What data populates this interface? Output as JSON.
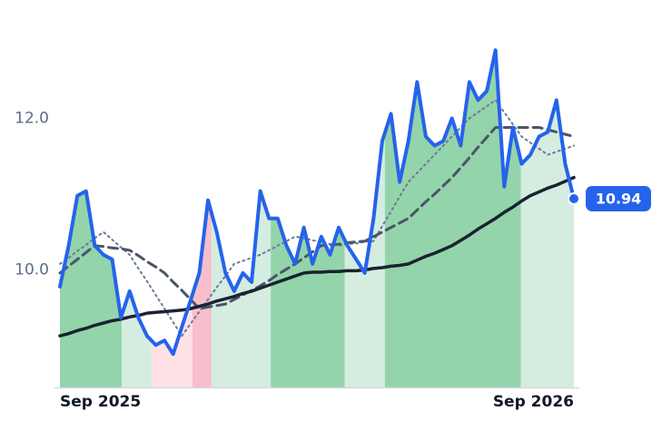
{
  "chart_data": {
    "type": "line",
    "categories": [
      "Sep 2025",
      null,
      null,
      null,
      null,
      null,
      null,
      null,
      null,
      null,
      null,
      null,
      null,
      null,
      null,
      null,
      null,
      null,
      null,
      null,
      null,
      null,
      null,
      null,
      null,
      null,
      null,
      null,
      null,
      null,
      null,
      null,
      null,
      null,
      null,
      null,
      null,
      null,
      null,
      null,
      null,
      null,
      null,
      null,
      null,
      null,
      null,
      null,
      null,
      null,
      null,
      null,
      null,
      null,
      null,
      null,
      null,
      null,
      null,
      "Sep 2026"
    ],
    "series": [
      {
        "color": "#2563eb",
        "style": "solid",
        "width": 4,
        "values": [
          9.78,
          10.32,
          10.98,
          11.04,
          10.32,
          10.2,
          10.14,
          9.37,
          9.72,
          9.37,
          9.13,
          9.01,
          9.07,
          8.89,
          9.25,
          9.6,
          9.96,
          10.92,
          10.5,
          9.96,
          9.72,
          9.96,
          9.84,
          11.04,
          10.68,
          10.68,
          10.32,
          10.08,
          10.56,
          10.08,
          10.44,
          10.2,
          10.56,
          10.32,
          10.14,
          9.96,
          10.68,
          11.7,
          12.06,
          11.16,
          11.7,
          12.48,
          11.76,
          11.64,
          11.7,
          12.0,
          11.64,
          12.48,
          12.24,
          12.36,
          12.9,
          11.1,
          11.88,
          11.4,
          11.52,
          11.76,
          11.82,
          12.24,
          11.4,
          10.94
        ]
      },
      {
        "color": "#6b7a99",
        "style": "dotted",
        "width": 2,
        "values": [
          10.08,
          10.16,
          10.25,
          10.33,
          10.42,
          10.5,
          10.4,
          10.3,
          10.2,
          10.02,
          9.85,
          9.67,
          9.49,
          9.31,
          9.13,
          9.29,
          9.45,
          9.61,
          9.77,
          9.92,
          10.08,
          10.12,
          10.16,
          10.2,
          10.26,
          10.32,
          10.38,
          10.44,
          10.42,
          10.39,
          10.37,
          10.34,
          10.32,
          10.34,
          10.35,
          10.37,
          10.38,
          10.58,
          10.77,
          10.97,
          11.16,
          11.28,
          11.4,
          11.52,
          11.64,
          11.76,
          11.88,
          12.0,
          12.08,
          12.16,
          12.24,
          12.08,
          11.92,
          11.76,
          11.68,
          11.6,
          11.52,
          11.56,
          11.6,
          11.64
        ]
      },
      {
        "color": "#4a5568",
        "style": "dashed",
        "width": 3,
        "values": [
          9.96,
          10.05,
          10.14,
          10.23,
          10.32,
          10.31,
          10.29,
          10.28,
          10.26,
          10.19,
          10.11,
          10.04,
          9.96,
          9.84,
          9.73,
          9.61,
          9.49,
          9.51,
          9.53,
          9.55,
          9.61,
          9.67,
          9.73,
          9.79,
          9.86,
          9.94,
          10.01,
          10.08,
          10.16,
          10.24,
          10.32,
          10.33,
          10.34,
          10.36,
          10.37,
          10.38,
          10.44,
          10.5,
          10.56,
          10.62,
          10.68,
          10.79,
          10.9,
          11.0,
          11.11,
          11.22,
          11.35,
          11.48,
          11.62,
          11.75,
          11.88,
          11.88,
          11.88,
          11.88,
          11.88,
          11.88,
          11.85,
          11.82,
          11.79,
          11.76
        ]
      },
      {
        "color": "#1a2233",
        "style": "solid",
        "width": 3.5,
        "values": [
          9.13,
          9.16,
          9.2,
          9.23,
          9.27,
          9.3,
          9.33,
          9.35,
          9.38,
          9.4,
          9.43,
          9.44,
          9.45,
          9.46,
          9.47,
          9.49,
          9.52,
          9.55,
          9.59,
          9.62,
          9.65,
          9.69,
          9.72,
          9.76,
          9.8,
          9.84,
          9.88,
          9.92,
          9.96,
          9.97,
          9.97,
          9.98,
          9.98,
          9.99,
          9.99,
          10.0,
          10.02,
          10.03,
          10.05,
          10.06,
          10.08,
          10.13,
          10.18,
          10.22,
          10.27,
          10.32,
          10.39,
          10.46,
          10.54,
          10.61,
          10.68,
          10.76,
          10.83,
          10.91,
          10.98,
          11.03,
          11.08,
          11.12,
          11.17,
          11.22
        ]
      }
    ],
    "bands": [
      {
        "from": 0,
        "to": 7.1,
        "color": "#94d4aa"
      },
      {
        "from": 7.1,
        "to": 10.5,
        "color": "#d4ede0"
      },
      {
        "from": 10.5,
        "to": 15.2,
        "color": "#fde1e7"
      },
      {
        "from": 15.2,
        "to": 17.4,
        "color": "#f7bfcb"
      },
      {
        "from": 17.4,
        "to": 24.2,
        "color": "#d4ede0"
      },
      {
        "from": 24.2,
        "to": 32.7,
        "color": "#94d4aa"
      },
      {
        "from": 32.7,
        "to": 37.3,
        "color": "#d4ede0"
      },
      {
        "from": 37.3,
        "to": 52.9,
        "color": "#94d4aa"
      },
      {
        "from": 52.9,
        "to": 59,
        "color": "#d4ede0"
      }
    ],
    "ylim": [
      8.45,
      13.55
    ],
    "yticks": [
      {
        "value": 10,
        "label": "10.0"
      },
      {
        "value": 12,
        "label": "12.0"
      }
    ],
    "grid": false
  }
}
